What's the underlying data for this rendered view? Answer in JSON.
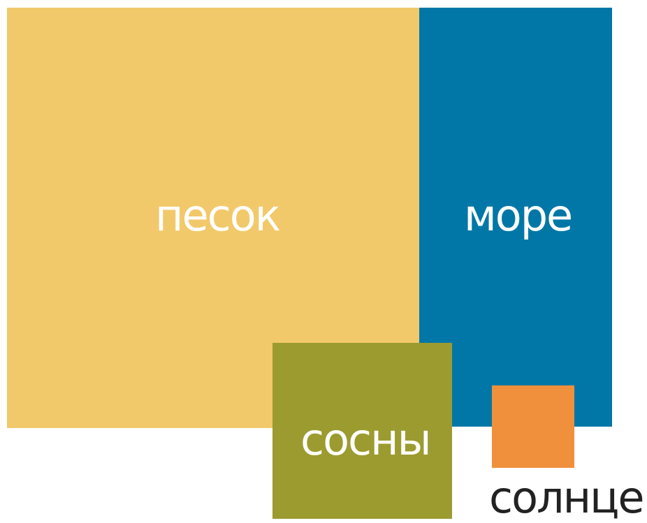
{
  "blocks": [
    {
      "label": "песок",
      "color": "#f2c96a"
    },
    {
      "label": "море",
      "color": "#0077a6"
    },
    {
      "label": "сосны",
      "color": "#9c9b30"
    },
    {
      "label": "солнце",
      "color": "#f0903c"
    }
  ]
}
